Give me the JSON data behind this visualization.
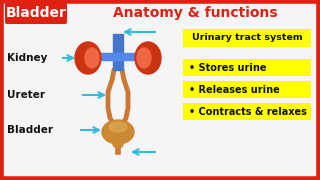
{
  "title_bladder": "Bladder",
  "title_rest": "Anatomy & functions",
  "title_bladder_bg": "#e02010",
  "title_bladder_color": "#ffffff",
  "title_rest_color": "#e02010",
  "bg_color": "#f5f5f5",
  "border_color": "#e02010",
  "label_kidney": "Kidney",
  "label_ureter": "Ureter",
  "label_bladder": "Bladder",
  "label_color": "#111111",
  "yellow_bg": "#ffff00",
  "bullet_header": "Urinary tract system",
  "bullets": [
    "• Stores urine",
    "• Releases urine",
    "• Contracts & relaxes"
  ],
  "bullet_color": "#111111",
  "arrow_color": "#33bbdd",
  "kidney_color": "#cc3311",
  "kidney_inner_color": "#ee6644",
  "tube_color": "#cc7733",
  "bladder_body_color": "#cc8833",
  "bladder_highlight": "#ddaa55",
  "spine_color": "#4477cc",
  "spine_bar_color": "#5588ee"
}
